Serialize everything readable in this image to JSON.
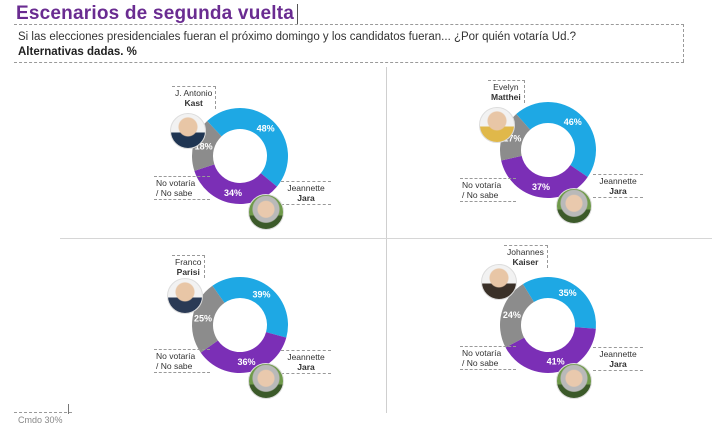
{
  "header": {
    "title": "Escenarios de segunda vuelta",
    "subtitle": "Si las elecciones presidenciales fueran el próximo domingo y los candidatos fueran... ¿Por quién votaría Ud.?",
    "alternatives": "Alternativas dadas. %"
  },
  "colors": {
    "candidate": "#1ea8e4",
    "jara": "#7b2fb6",
    "no_votaria": "#8c8c8c"
  },
  "chart_data": [
    {
      "type": "pie",
      "donut": true,
      "categories": [
        "J. Antonio Kast",
        "Jeannette Jara",
        "No votaría / No sabe"
      ],
      "values": [
        48,
        34,
        18
      ],
      "labels": [
        "48%",
        "34%",
        "18%"
      ],
      "candidate_first": "J. Antonio",
      "candidate_last": "Kast",
      "jara_first": "Jeannette",
      "jara_last": "Jara",
      "nv_line1": "No votaría",
      "nv_line2": "/ No sabe"
    },
    {
      "type": "pie",
      "donut": true,
      "categories": [
        "Evelyn Matthei",
        "Jeannette Jara",
        "No votaría / No sabe"
      ],
      "values": [
        46,
        37,
        17
      ],
      "labels": [
        "46%",
        "37%",
        "17%"
      ],
      "candidate_first": "Evelyn",
      "candidate_last": "Matthei",
      "jara_first": "Jeannette",
      "jara_last": "Jara",
      "nv_line1": "No votaría",
      "nv_line2": "/ No sabe"
    },
    {
      "type": "pie",
      "donut": true,
      "categories": [
        "Franco Parisi",
        "Jeannette Jara",
        "No votaría / No sabe"
      ],
      "values": [
        39,
        36,
        25
      ],
      "labels": [
        "39%",
        "36%",
        "25%"
      ],
      "candidate_first": "Franco",
      "candidate_last": "Parisi",
      "jara_first": "Jeannette",
      "jara_last": "Jara",
      "nv_line1": "No votaría",
      "nv_line2": "/ No sabe"
    },
    {
      "type": "pie",
      "donut": true,
      "categories": [
        "Johannes Kaiser",
        "Jeannette Jara",
        "No votaría / No sabe"
      ],
      "values": [
        35,
        41,
        24
      ],
      "labels": [
        "35%",
        "41%",
        "24%"
      ],
      "candidate_first": "Johannes",
      "candidate_last": "Kaiser",
      "jara_first": "Jeannette",
      "jara_last": "Jara",
      "nv_line1": "No votaría",
      "nv_line2": "/ No sabe"
    }
  ],
  "footer": {
    "source_fragment": "Cmdo 30%"
  }
}
